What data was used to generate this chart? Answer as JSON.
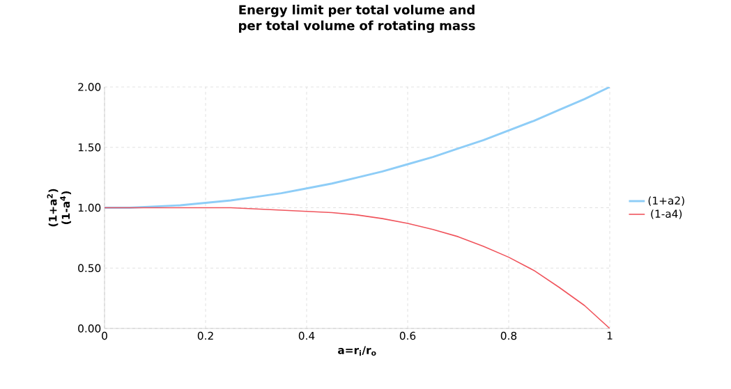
{
  "chart_data": {
    "type": "line",
    "title": "Energy limit per total volume and per total volume of rotating mass",
    "xlabel": "a=r$_{i}$/r$_{o}$",
    "ylabel": "(1+a$^{2}$) (1-a$^{4}$)",
    "x": [
      0,
      0.05,
      0.1,
      0.15,
      0.2,
      0.25,
      0.3,
      0.35,
      0.4,
      0.45,
      0.5,
      0.55,
      0.6,
      0.65,
      0.7,
      0.75,
      0.8,
      0.85,
      0.9,
      0.95,
      1
    ],
    "series": [
      {
        "name": "(1+a2)",
        "color": "#8ecdf7",
        "values": [
          1.0,
          1.0,
          1.01,
          1.02,
          1.04,
          1.06,
          1.09,
          1.12,
          1.16,
          1.2,
          1.25,
          1.3,
          1.36,
          1.42,
          1.49,
          1.56,
          1.64,
          1.72,
          1.81,
          1.9,
          2.0
        ]
      },
      {
        "name": "(1-a4)",
        "color": "#f0545c",
        "values": [
          1.0,
          1.0,
          1.0,
          1.0,
          1.0,
          1.0,
          0.99,
          0.98,
          0.97,
          0.96,
          0.94,
          0.91,
          0.87,
          0.82,
          0.76,
          0.68,
          0.59,
          0.48,
          0.34,
          0.19,
          0.0
        ]
      }
    ],
    "xlim": [
      0,
      1
    ],
    "ylim": [
      0,
      2
    ],
    "xticks": [
      0,
      0.2,
      0.4,
      0.6,
      0.8,
      1
    ],
    "yticks": [
      {
        "value": 0,
        "label": "0.00"
      },
      {
        "value": 0.5,
        "label": "0.50"
      },
      {
        "value": 1,
        "label": "1.00"
      },
      {
        "value": 1.5,
        "label": "1.50"
      },
      {
        "value": 2,
        "label": "2.00"
      }
    ],
    "grid": true,
    "legend": "right",
    "marker": "none",
    "line_style": "solid"
  }
}
